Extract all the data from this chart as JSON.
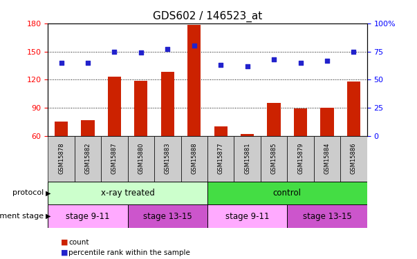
{
  "title": "GDS602 / 146523_at",
  "samples": [
    "GSM15878",
    "GSM15882",
    "GSM15887",
    "GSM15880",
    "GSM15883",
    "GSM15888",
    "GSM15877",
    "GSM15881",
    "GSM15885",
    "GSM15879",
    "GSM15884",
    "GSM15886"
  ],
  "bar_values": [
    75,
    77,
    123,
    119,
    128,
    178,
    70,
    62,
    95,
    89,
    90,
    118
  ],
  "scatter_pct": [
    65,
    65,
    75,
    74,
    77,
    80,
    63,
    62,
    68,
    65,
    67,
    75
  ],
  "bar_color": "#cc2200",
  "scatter_color": "#2222cc",
  "ylim_left": [
    60,
    180
  ],
  "ylim_right": [
    0,
    100
  ],
  "yticks_left": [
    60,
    90,
    120,
    150,
    180
  ],
  "yticks_right": [
    0,
    25,
    50,
    75,
    100
  ],
  "ytick_right_labels": [
    "0",
    "25",
    "50",
    "75",
    "100%"
  ],
  "protocol_groups": [
    {
      "label": "x-ray treated",
      "start": 0,
      "end": 6,
      "color": "#ccffcc"
    },
    {
      "label": "control",
      "start": 6,
      "end": 12,
      "color": "#44dd44"
    }
  ],
  "stage_groups": [
    {
      "label": "stage 9-11",
      "start": 0,
      "end": 3,
      "color": "#ffaaff"
    },
    {
      "label": "stage 13-15",
      "start": 3,
      "end": 6,
      "color": "#cc55cc"
    },
    {
      "label": "stage 9-11",
      "start": 6,
      "end": 9,
      "color": "#ffaaff"
    },
    {
      "label": "stage 13-15",
      "start": 9,
      "end": 12,
      "color": "#cc55cc"
    }
  ],
  "protocol_label": "protocol",
  "stage_label": "development stage",
  "legend_bar_label": "count",
  "legend_scatter_label": "percentile rank within the sample",
  "title_fontsize": 11,
  "tick_fontsize": 8,
  "label_fontsize": 8,
  "sample_box_color": "#cccccc",
  "grid_yticks": [
    90,
    120,
    150
  ]
}
